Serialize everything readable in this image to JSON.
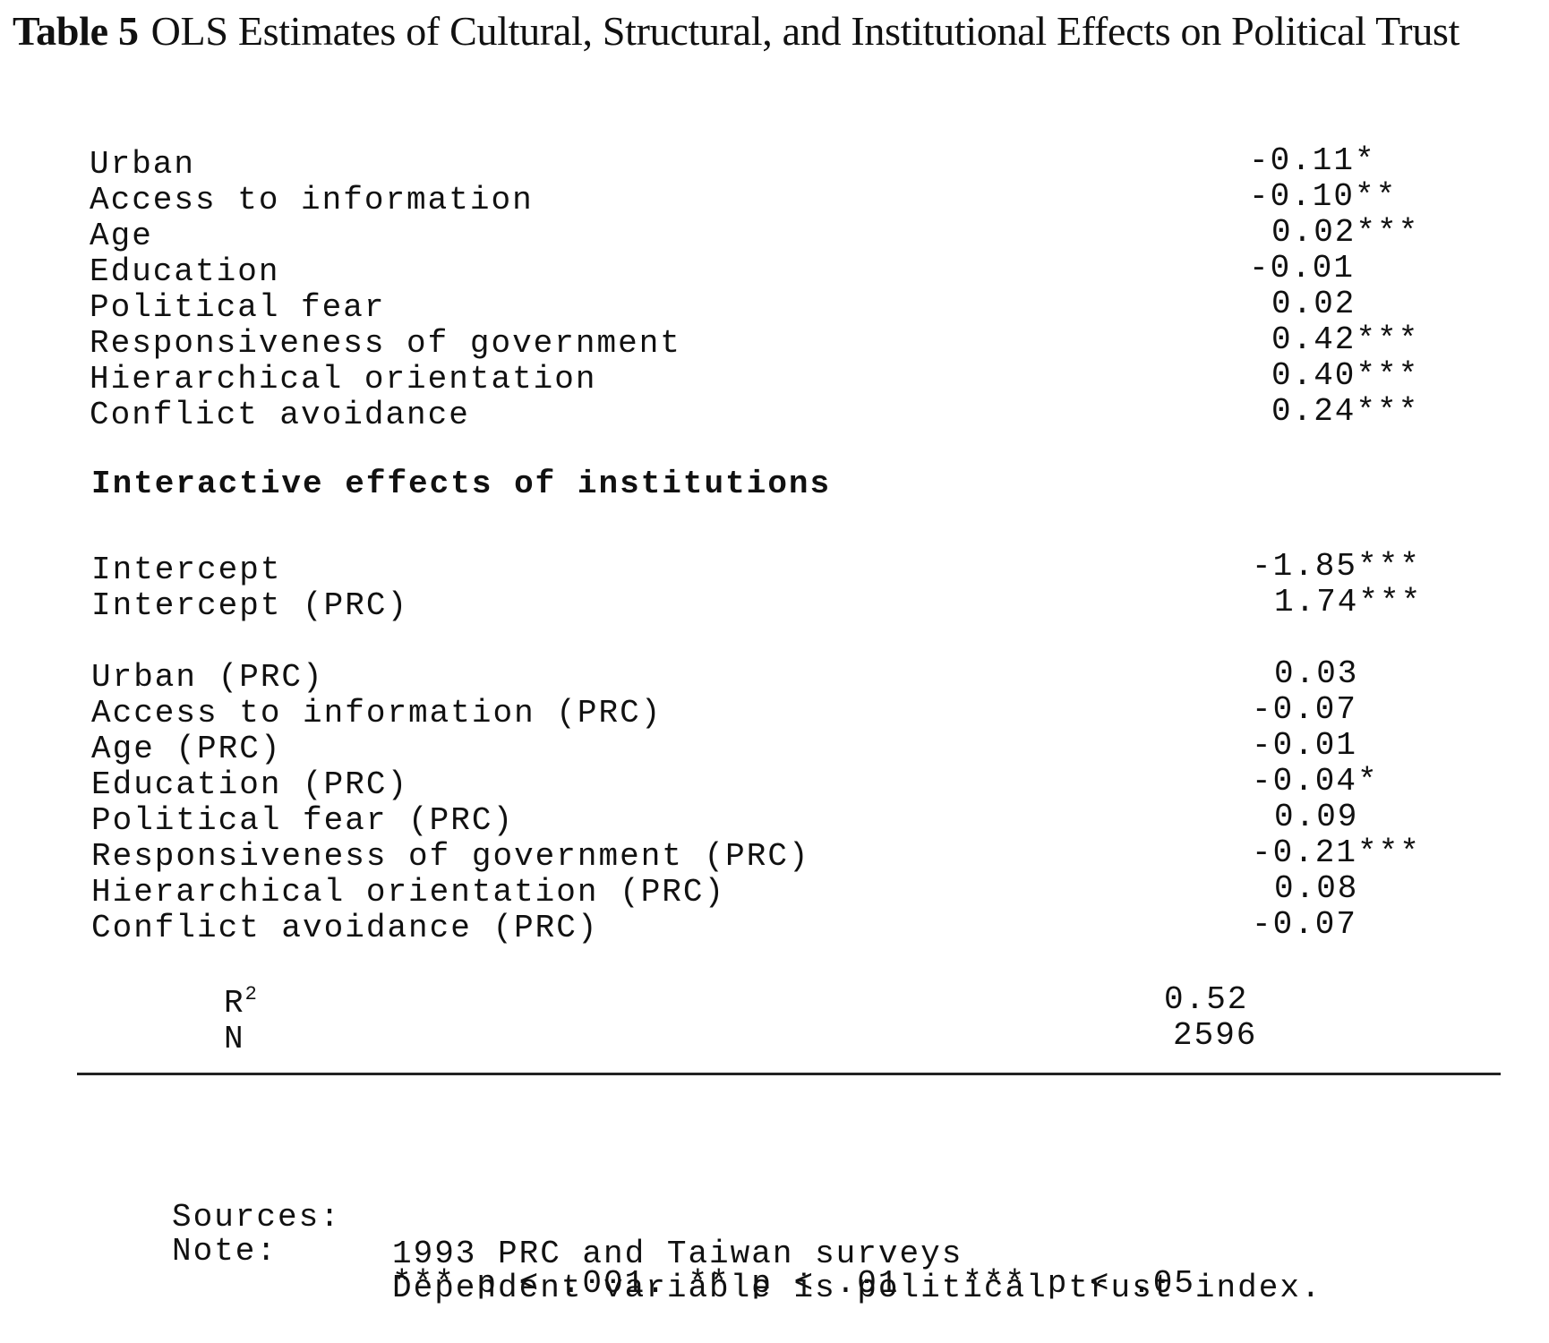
{
  "title": {
    "label": "Table 5",
    "text": "OLS Estimates of Cultural, Structural, and Institutional Effects on Political Trust"
  },
  "main_effects": [
    {
      "variable": "Urban",
      "estimate": "-0.11*"
    },
    {
      "variable": "Access to information",
      "estimate": "-0.10**"
    },
    {
      "variable": "Age",
      "estimate": "0.02***"
    },
    {
      "variable": "Education",
      "estimate": "-0.01"
    },
    {
      "variable": "Political fear",
      "estimate": "0.02"
    },
    {
      "variable": "Responsiveness of government",
      "estimate": "0.42***"
    },
    {
      "variable": "Hierarchical orientation",
      "estimate": "0.40***"
    },
    {
      "variable": "Conflict avoidance",
      "estimate": "0.24***"
    }
  ],
  "section_heading": "Interactive effects of institutions",
  "intercepts": [
    {
      "variable": "Intercept",
      "estimate": "-1.85***"
    },
    {
      "variable": "Intercept (PRC)",
      "estimate": "1.74***"
    }
  ],
  "interactions": [
    {
      "variable": "Urban (PRC)",
      "estimate": "0.03"
    },
    {
      "variable": "Access to information (PRC)",
      "estimate": "-0.07"
    },
    {
      "variable": "Age (PRC)",
      "estimate": "-0.01"
    },
    {
      "variable": "Education (PRC)",
      "estimate": "-0.04*"
    },
    {
      "variable": "Political fear (PRC)",
      "estimate": "0.09"
    },
    {
      "variable": "Responsiveness of government (PRC)",
      "estimate": "-0.21***"
    },
    {
      "variable": "Hierarchical orientation (PRC)",
      "estimate": "0.08"
    },
    {
      "variable": "Conflict avoidance (PRC)",
      "estimate": "-0.07"
    }
  ],
  "fit": {
    "r2_label": "R",
    "r2_sup": "2",
    "r2_value": "0.52",
    "n_label": "N",
    "n_value": "2596"
  },
  "footnotes": {
    "sources_label": "Sources:",
    "sources_text": "1993 PRC and Taiwan surveys",
    "note_label": "Note:",
    "note_text": "Dependent variable is political trust index.",
    "significance": "*** p < .001. ** p < .01   *** p < .05"
  }
}
